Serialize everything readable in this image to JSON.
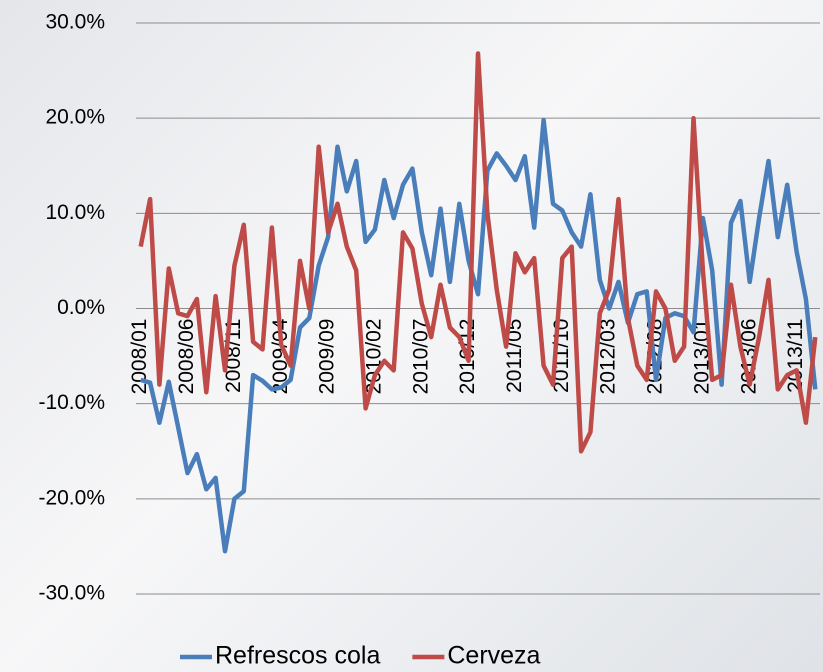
{
  "chart_data": {
    "type": "line",
    "categories": [
      "2008/01",
      null,
      null,
      null,
      null,
      "2008/06",
      null,
      null,
      null,
      null,
      "2008/11",
      null,
      null,
      null,
      null,
      "2009/04",
      null,
      null,
      null,
      null,
      "2009/09",
      null,
      null,
      null,
      null,
      "2010/02",
      null,
      null,
      null,
      null,
      "2010/07",
      null,
      null,
      null,
      null,
      "2010/12",
      null,
      null,
      null,
      null,
      "2011/05",
      null,
      null,
      null,
      null,
      "2011/10",
      null,
      null,
      null,
      null,
      "2012/03",
      null,
      null,
      null,
      null,
      "2012/08",
      null,
      null,
      null,
      null,
      "2013/01",
      null,
      null,
      null,
      null,
      "2013/06",
      null,
      null,
      null,
      null,
      "2013/11",
      null,
      null
    ],
    "series": [
      {
        "name": "Refrescos cola",
        "color": "#4a7ebb",
        "values": [
          -7.5,
          -7.8,
          -12,
          -7.7,
          -12.5,
          -17.3,
          -15.3,
          -19,
          -17.8,
          -25.5,
          -20,
          -19.2,
          -7,
          -7.6,
          -8.5,
          -8.3,
          -7.5,
          -2,
          -1,
          4.5,
          7.5,
          17,
          12.3,
          15.5,
          7,
          8.3,
          13.5,
          9.5,
          13,
          14.7,
          8,
          3.5,
          10.5,
          2.8,
          11,
          5,
          1.5,
          14.5,
          16.3,
          15,
          13.5,
          16,
          8.5,
          19.8,
          11,
          10.3,
          8,
          6.5,
          12,
          3,
          0,
          2.8,
          -1.5,
          1.5,
          1.8,
          -7.5,
          -1,
          -0.5,
          -0.8,
          -2.5,
          9.5,
          4,
          -8,
          9,
          11.3,
          2.8,
          9.5,
          15.5,
          7.5,
          13,
          6,
          1,
          -8.5
        ]
      },
      {
        "name": "Cerveza",
        "color": "#be4b48",
        "values": [
          6.5,
          11.5,
          -8,
          4.2,
          -0.5,
          -0.8,
          1,
          -8.8,
          1.3,
          -6.5,
          4.5,
          8.8,
          -3.5,
          -4.3,
          8.5,
          -3.8,
          -6,
          5,
          0,
          17,
          8,
          11,
          6.5,
          4,
          -10.5,
          -7,
          -5.5,
          -6.5,
          8,
          6.3,
          0.5,
          -3,
          2.5,
          -2,
          -3,
          -5.5,
          26.8,
          10,
          2,
          -4,
          5.8,
          3.8,
          5.3,
          -6,
          -8,
          5.3,
          6.5,
          -15,
          -13,
          -0.5,
          2,
          11.5,
          -1,
          -6,
          -7.5,
          1.8,
          0,
          -5.5,
          -4,
          20,
          4,
          -7.5,
          -7,
          2.5,
          -4,
          -8,
          -3,
          3,
          -8.5,
          -7,
          -6.5,
          -12,
          -3
        ]
      }
    ],
    "ylim": [
      -30,
      30
    ],
    "yticks": [
      {
        "value": -30,
        "label": "-30.0%"
      },
      {
        "value": -20,
        "label": "-20.0%"
      },
      {
        "value": -10,
        "label": "-10.0%"
      },
      {
        "value": 0,
        "label": "0.0%"
      },
      {
        "value": 10,
        "label": "10.0%"
      },
      {
        "value": 20,
        "label": "20.0%"
      },
      {
        "value": 30,
        "label": "30.0%"
      }
    ],
    "grid": true,
    "legend": "bottom"
  }
}
